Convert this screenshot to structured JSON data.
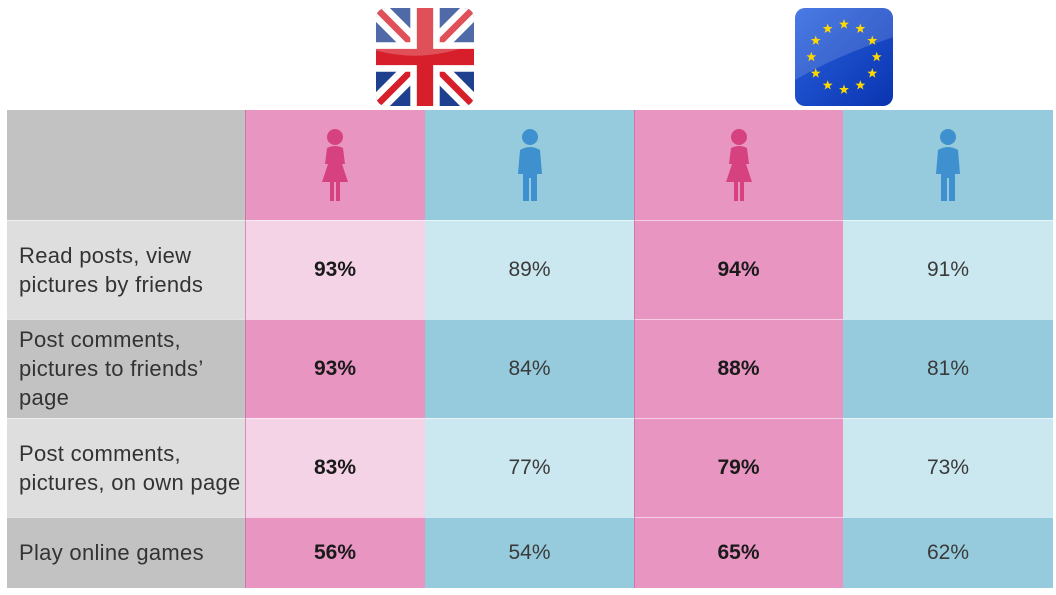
{
  "chart_data": {
    "type": "table",
    "groups": [
      {
        "flag": "uk-flag-icon"
      },
      {
        "flag": "eu-flag-icon"
      }
    ],
    "columns": [
      {
        "group": 0,
        "gender": "female",
        "icon": "female-person-icon"
      },
      {
        "group": 0,
        "gender": "male",
        "icon": "male-person-icon"
      },
      {
        "group": 1,
        "gender": "female",
        "icon": "female-person-icon"
      },
      {
        "group": 1,
        "gender": "male",
        "icon": "male-person-icon"
      }
    ],
    "rows": [
      {
        "label": "Read posts, view pictures by friends",
        "values": [
          "93%",
          "89%",
          "94%",
          "91%"
        ]
      },
      {
        "label": "Post comments, pictures to friends’ page",
        "values": [
          "93%",
          "84%",
          "88%",
          "81%"
        ]
      },
      {
        "label": "Post comments, pictures, on own page",
        "values": [
          "83%",
          "77%",
          "79%",
          "73%"
        ]
      },
      {
        "label": "Play online games",
        "values": [
          "56%",
          "54%",
          "65%",
          "62%"
        ]
      }
    ]
  },
  "colors": {
    "pink_dark": "#e995c2",
    "pink_light": "#f5d3e6",
    "blue_dark": "#96cbdd",
    "blue_light": "#cbe7ef",
    "grey_dark": "#c2c2c2",
    "grey_light": "#dedede",
    "female_icon": "#d6427f",
    "male_icon": "#3f90cf"
  }
}
